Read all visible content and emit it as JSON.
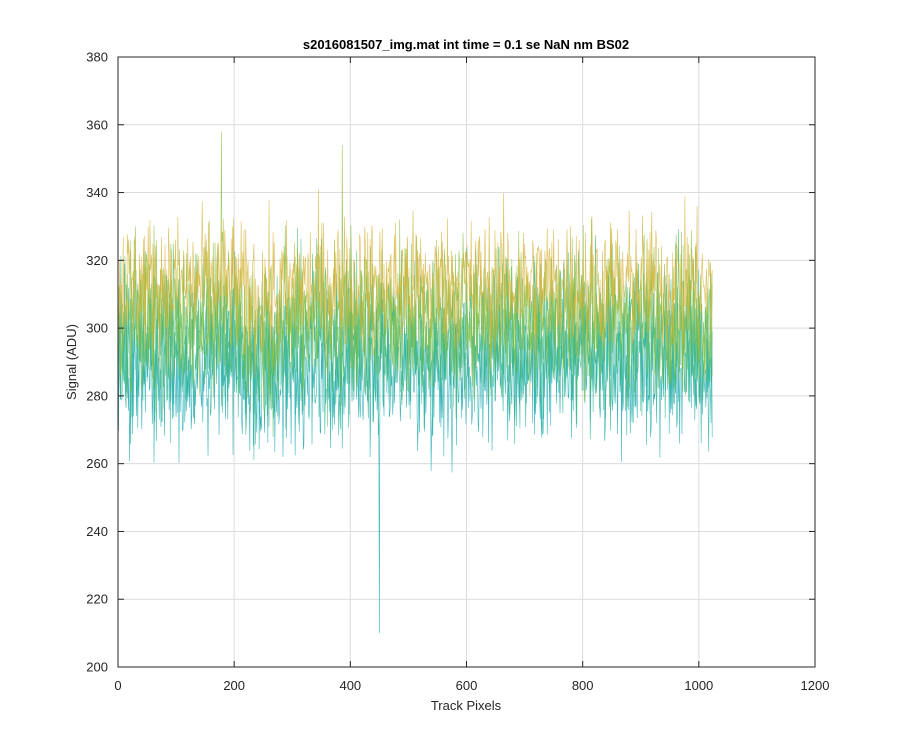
{
  "chart_data": {
    "type": "line",
    "title": "s2016081507_img.mat int time = 0.1 se  NaN nm BS02",
    "xlabel": "Track Pixels",
    "ylabel": "Signal (ADU)",
    "xlim": [
      0,
      1200
    ],
    "ylim": [
      200,
      380
    ],
    "xticks": [
      0,
      200,
      400,
      600,
      800,
      1000,
      1200
    ],
    "yticks": [
      200,
      220,
      240,
      260,
      280,
      300,
      320,
      340,
      360,
      380
    ],
    "grid": true,
    "n_pixels": 1024,
    "series_colors": [
      "#1aa9b0",
      "#2fb597",
      "#4dbb6f",
      "#8bbf45",
      "#d6b43a"
    ],
    "series": [
      {
        "mean": 288,
        "spread": 11
      },
      {
        "mean": 294,
        "spread": 11
      },
      {
        "mean": 300,
        "spread": 11
      },
      {
        "mean": 306,
        "spread": 11
      },
      {
        "mean": 313,
        "spread": 10
      }
    ],
    "features": [
      {
        "x": 450,
        "min": 210
      },
      {
        "x": 386,
        "max": 354
      },
      {
        "x": 178,
        "max": 358
      }
    ]
  }
}
